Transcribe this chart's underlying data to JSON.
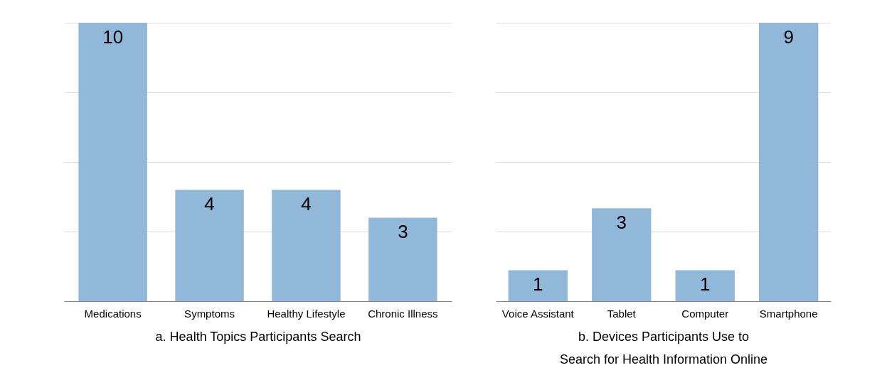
{
  "chart_data": [
    {
      "type": "bar",
      "xlabel": "a. Health Topics Participants Search",
      "categories": [
        "Medications",
        "Symptoms",
        "Healthy Lifestyle",
        "Chronic Illness"
      ],
      "values": [
        10,
        4,
        4,
        3
      ],
      "color": "#92b8d9",
      "ylim": [
        0,
        10
      ],
      "yticks": [
        {
          "value": 0,
          "label": null
        },
        {
          "value": 2.5,
          "label": null
        },
        {
          "value": 5,
          "label": null
        },
        {
          "value": 7.5,
          "label": null
        },
        {
          "value": 10,
          "label": null
        }
      ],
      "grid": "y",
      "data_labels": true,
      "tick_labels": "x"
    },
    {
      "type": "bar",
      "xlabel": "b. Devices Participants Use to Search for Health Information Online",
      "categories": [
        "Voice Assistant",
        "Tablet",
        "Computer",
        "Smartphone"
      ],
      "values": [
        1,
        3,
        1,
        9
      ],
      "color": "#92b8d9",
      "ylim": [
        0,
        9
      ],
      "yticks": [
        {
          "value": 0,
          "label": null
        },
        {
          "value": 2.25,
          "label": null
        },
        {
          "value": 4.5,
          "label": null
        },
        {
          "value": 6.75,
          "label": null
        },
        {
          "value": 9,
          "label": null
        }
      ],
      "grid": "y",
      "data_labels": true,
      "tick_labels": "x"
    }
  ]
}
